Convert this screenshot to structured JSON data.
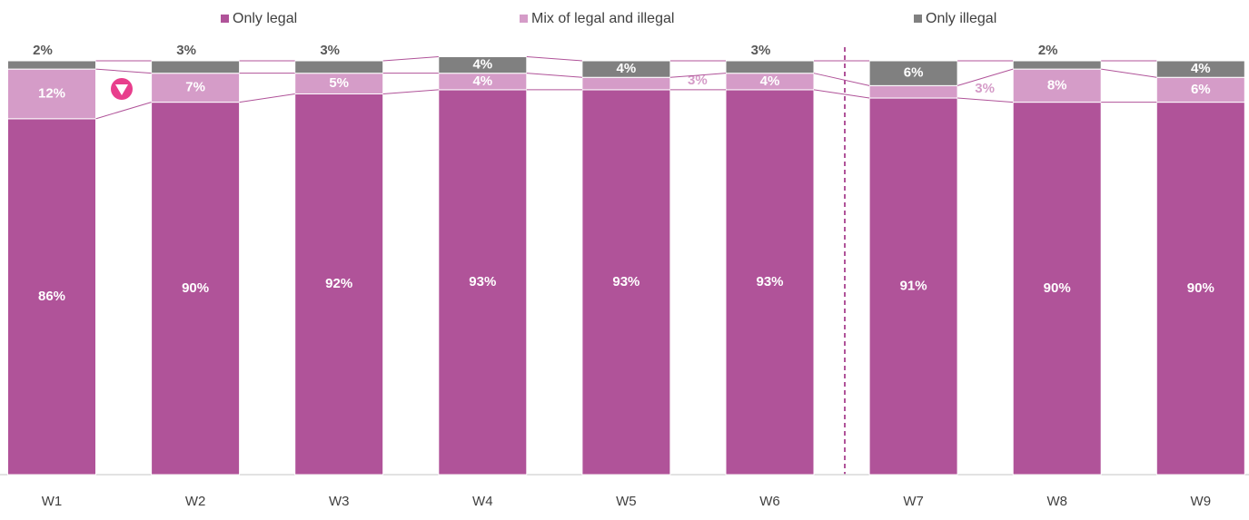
{
  "chart_data": {
    "type": "stacked_bar",
    "categories": [
      "W1",
      "W2",
      "W3",
      "W4",
      "W5",
      "W6",
      "W7",
      "W8",
      "W9"
    ],
    "ylim": [
      0,
      100
    ],
    "series": [
      {
        "name": "Only legal",
        "color": "#b05399",
        "values": [
          86,
          90,
          92,
          93,
          93,
          93,
          91,
          90,
          90
        ],
        "value_labels": [
          "86%",
          "90%",
          "92%",
          "93%",
          "93%",
          "93%",
          "91%",
          "90%",
          "90%"
        ]
      },
      {
        "name": "Mix of legal and illegal",
        "color": "#d59cc8",
        "values": [
          12,
          7,
          5,
          4,
          3,
          4,
          3,
          8,
          6
        ],
        "value_labels": [
          "12%",
          "7%",
          "5%",
          "4%",
          "3%",
          "4%",
          "3%",
          "8%",
          "6%"
        ]
      },
      {
        "name": "Only illegal",
        "color": "#808080",
        "values": [
          2,
          3,
          3,
          4,
          4,
          3,
          6,
          2,
          4
        ],
        "value_labels": [
          "2%",
          "3%",
          "3%",
          "4%",
          "4%",
          "3%",
          "6%",
          "2%",
          "4%"
        ]
      }
    ]
  }
}
